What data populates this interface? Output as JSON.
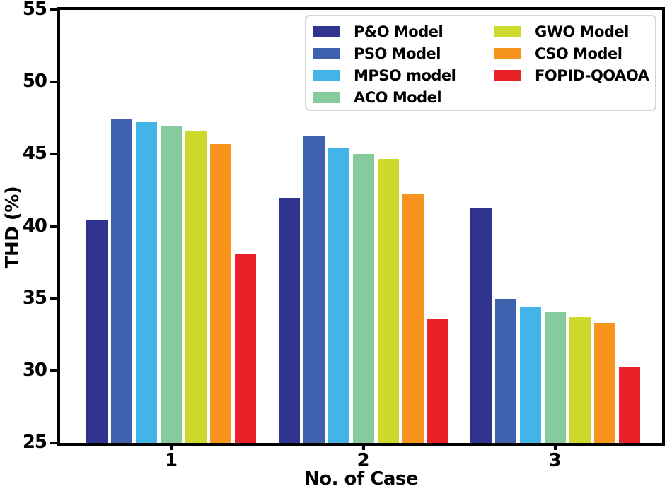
{
  "chart_data": {
    "type": "bar",
    "title": "",
    "xlabel": "No. of Case",
    "ylabel": "THD (%)",
    "categories": [
      "1",
      "2",
      "3"
    ],
    "ylim": [
      25,
      55
    ],
    "yticks": [
      25,
      30,
      35,
      40,
      45,
      50,
      55
    ],
    "grid": false,
    "legend_position": "upper-right",
    "legend_columns": [
      4,
      3
    ],
    "axis_color": "#000000",
    "series": [
      {
        "name": "P&O Model",
        "color": "#2f3490",
        "values": [
          40.4,
          42.0,
          41.3
        ]
      },
      {
        "name": "PSO Model",
        "color": "#3e61ad",
        "values": [
          47.4,
          46.3,
          35.0
        ]
      },
      {
        "name": "MPSO model",
        "color": "#43b4e8",
        "values": [
          47.2,
          45.4,
          34.4
        ]
      },
      {
        "name": "ACO Model",
        "color": "#85cb9e",
        "values": [
          47.0,
          45.0,
          34.1
        ]
      },
      {
        "name": "GWO Model",
        "color": "#cdda2c",
        "values": [
          46.6,
          44.7,
          33.7
        ]
      },
      {
        "name": "CSO Model",
        "color": "#f7941e",
        "values": [
          45.7,
          42.3,
          33.3
        ]
      },
      {
        "name": "FOPID-QOAOA",
        "color": "#ea2127",
        "values": [
          38.1,
          33.6,
          30.3
        ]
      }
    ]
  }
}
